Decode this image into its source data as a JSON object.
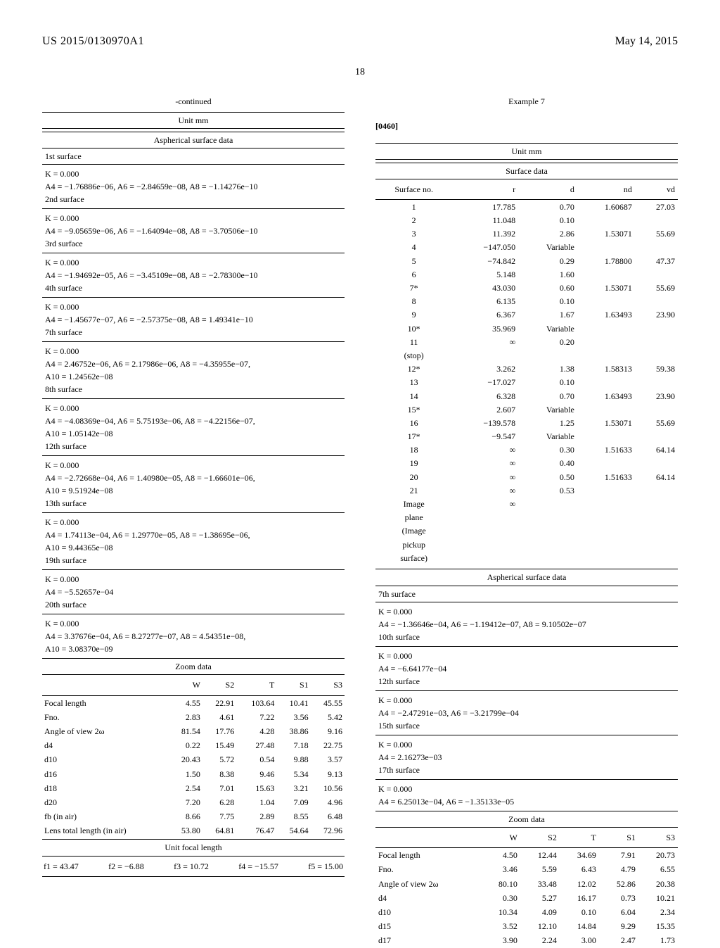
{
  "header": {
    "pubnum": "US 2015/0130970A1",
    "date": "May 14, 2015",
    "page_number": "18"
  },
  "left": {
    "continued": "-continued",
    "unit": "Unit mm",
    "asph_title": "Aspherical surface data",
    "surfaces": [
      {
        "name": "1st surface",
        "lines": [
          "K = 0.000",
          "A4 = −1.76886e−06, A6 = −2.84659e−08, A8 = −1.14276e−10"
        ],
        "next": "2nd surface"
      },
      {
        "name": "",
        "lines": [
          "K = 0.000",
          "A4 = −9.05659e−06, A6 = −1.64094e−08, A8 = −3.70506e−10"
        ],
        "next": "3rd surface"
      },
      {
        "name": "",
        "lines": [
          "K = 0.000",
          "A4 = −1.94692e−05, A6 = −3.45109e−08, A8 = −2.78300e−10"
        ],
        "next": "4th surface"
      },
      {
        "name": "",
        "lines": [
          "K = 0.000",
          "A4 = −1.45677e−07, A6 = −2.57375e−08, A8 = 1.49341e−10"
        ],
        "next": "7th surface"
      },
      {
        "name": "",
        "lines": [
          "K = 0.000",
          "A4 = 2.46752e−06, A6 = 2.17986e−06, A8 = −4.35955e−07,",
          "A10 = 1.24562e−08"
        ],
        "next": "8th surface"
      },
      {
        "name": "",
        "lines": [
          "K = 0.000",
          "A4 = −4.08369e−04, A6 = 5.75193e−06, A8 = −4.22156e−07,",
          "A10 = 1.05142e−08"
        ],
        "next": "12th surface"
      },
      {
        "name": "",
        "lines": [
          "K = 0.000",
          "A4 = −2.72668e−04, A6 = 1.40980e−05, A8 = −1.66601e−06,",
          "A10 = 9.51924e−08"
        ],
        "next": "13th surface"
      },
      {
        "name": "",
        "lines": [
          "K = 0.000",
          "A4 = 1.74113e−04, A6 = 1.29770e−05, A8 = −1.38695e−06,",
          "A10 = 9.44365e−08"
        ],
        "next": "19th surface"
      },
      {
        "name": "",
        "lines": [
          "K = 0.000",
          "A4 = −5.52657e−04"
        ],
        "next": "20th surface"
      },
      {
        "name": "",
        "lines": [
          "K = 0.000",
          "A4 = 3.37676e−04, A6 = 8.27277e−07, A8 = 4.54351e−08,",
          "A10 = 3.08370e−09"
        ],
        "next": ""
      }
    ],
    "zoom_title": "Zoom data",
    "zoom_cols": [
      "",
      "W",
      "S2",
      "T",
      "S1",
      "S3"
    ],
    "zoom_rows": [
      [
        "Focal length",
        "4.55",
        "22.91",
        "103.64",
        "10.41",
        "45.55"
      ],
      [
        "Fno.",
        "2.83",
        "4.61",
        "7.22",
        "3.56",
        "5.42"
      ],
      [
        "Angle of view 2ω",
        "81.54",
        "17.76",
        "4.28",
        "38.86",
        "9.16"
      ],
      [
        "d4",
        "0.22",
        "15.49",
        "27.48",
        "7.18",
        "22.75"
      ],
      [
        "d10",
        "20.43",
        "5.72",
        "0.54",
        "9.88",
        "3.57"
      ],
      [
        "d16",
        "1.50",
        "8.38",
        "9.46",
        "5.34",
        "9.13"
      ],
      [
        "d18",
        "2.54",
        "7.01",
        "15.63",
        "3.21",
        "10.56"
      ],
      [
        "d20",
        "7.20",
        "6.28",
        "1.04",
        "7.09",
        "4.96"
      ],
      [
        "fb (in air)",
        "8.66",
        "7.75",
        "2.89",
        "8.55",
        "6.48"
      ],
      [
        "Lens total length (in air)",
        "53.80",
        "64.81",
        "76.47",
        "54.64",
        "72.96"
      ]
    ],
    "ufl_title": "Unit focal length",
    "ufl": [
      "f1 = 43.47",
      "f2 = −6.88",
      "f3 = 10.72",
      "f4 = −15.57",
      "f5 = 15.00"
    ]
  },
  "right": {
    "example_label": "Example 7",
    "para_num": "[0460]",
    "unit": "Unit mm",
    "surface_data_label": "Surface data",
    "surf_cols": [
      "Surface no.",
      "r",
      "d",
      "nd",
      "vd"
    ],
    "surf_rows": [
      [
        "1",
        "17.785",
        "0.70",
        "1.60687",
        "27.03"
      ],
      [
        "2",
        "11.048",
        "0.10",
        "",
        ""
      ],
      [
        "3",
        "11.392",
        "2.86",
        "1.53071",
        "55.69"
      ],
      [
        "4",
        "−147.050",
        "Variable",
        "",
        ""
      ],
      [
        "5",
        "−74.842",
        "0.29",
        "1.78800",
        "47.37"
      ],
      [
        "6",
        "5.148",
        "1.60",
        "",
        ""
      ],
      [
        "7*",
        "43.030",
        "0.60",
        "1.53071",
        "55.69"
      ],
      [
        "8",
        "6.135",
        "0.10",
        "",
        ""
      ],
      [
        "9",
        "6.367",
        "1.67",
        "1.63493",
        "23.90"
      ],
      [
        "10*",
        "35.969",
        "Variable",
        "",
        ""
      ],
      [
        "11",
        "∞",
        "0.20",
        "",
        ""
      ],
      [
        "(stop)",
        "",
        "",
        "",
        ""
      ],
      [
        "12*",
        "3.262",
        "1.38",
        "1.58313",
        "59.38"
      ],
      [
        "13",
        "−17.027",
        "0.10",
        "",
        ""
      ],
      [
        "14",
        "6.328",
        "0.70",
        "1.63493",
        "23.90"
      ],
      [
        "15*",
        "2.607",
        "Variable",
        "",
        ""
      ],
      [
        "16",
        "−139.578",
        "1.25",
        "1.53071",
        "55.69"
      ],
      [
        "17*",
        "−9.547",
        "Variable",
        "",
        ""
      ],
      [
        "18",
        "∞",
        "0.30",
        "1.51633",
        "64.14"
      ],
      [
        "19",
        "∞",
        "0.40",
        "",
        ""
      ],
      [
        "20",
        "∞",
        "0.50",
        "1.51633",
        "64.14"
      ],
      [
        "21",
        "∞",
        "0.53",
        "",
        ""
      ],
      [
        "Image",
        "∞",
        "",
        "",
        ""
      ],
      [
        "plane",
        "",
        "",
        "",
        ""
      ],
      [
        "(Image",
        "",
        "",
        "",
        ""
      ],
      [
        "pickup",
        "",
        "",
        "",
        ""
      ],
      [
        "surface)",
        "",
        "",
        "",
        ""
      ]
    ],
    "asph_title": "Aspherical surface data",
    "asph_blocks": [
      {
        "name": "7th surface",
        "lines": [
          "K = 0.000",
          "A4 = −1.36646e−04, A6 = −1.19412e−07, A8 = 9.10502e−07"
        ],
        "next": "10th surface"
      },
      {
        "name": "",
        "lines": [
          "K = 0.000",
          "A4 = −6.64177e−04"
        ],
        "next": "12th surface"
      },
      {
        "name": "",
        "lines": [
          "K = 0.000",
          "A4 = −2.47291e−03, A6 = −3.21799e−04"
        ],
        "next": "15th surface"
      },
      {
        "name": "",
        "lines": [
          "K = 0.000",
          "A4 = 2.16273e−03"
        ],
        "next": "17th surface"
      },
      {
        "name": "",
        "lines": [
          "K = 0.000",
          "A4 = 6.25013e−04, A6 = −1.35133e−05"
        ],
        "next": ""
      }
    ],
    "zoom_title": "Zoom data",
    "zoom_cols": [
      "",
      "W",
      "S2",
      "T",
      "S1",
      "S3"
    ],
    "zoom_rows": [
      [
        "Focal length",
        "4.50",
        "12.44",
        "34.69",
        "7.91",
        "20.73"
      ],
      [
        "Fno.",
        "3.46",
        "5.59",
        "6.43",
        "4.79",
        "6.55"
      ],
      [
        "Angle of view 2ω",
        "80.10",
        "33.48",
        "12.02",
        "52.86",
        "20.38"
      ],
      [
        "d4",
        "0.30",
        "5.27",
        "16.17",
        "0.73",
        "10.21"
      ],
      [
        "d10",
        "10.34",
        "4.09",
        "0.10",
        "6.04",
        "2.34"
      ],
      [
        "d15",
        "3.52",
        "12.10",
        "14.84",
        "9.29",
        "15.35"
      ],
      [
        "d17",
        "3.90",
        "2.24",
        "3.00",
        "2.47",
        "1.73"
      ]
    ]
  }
}
